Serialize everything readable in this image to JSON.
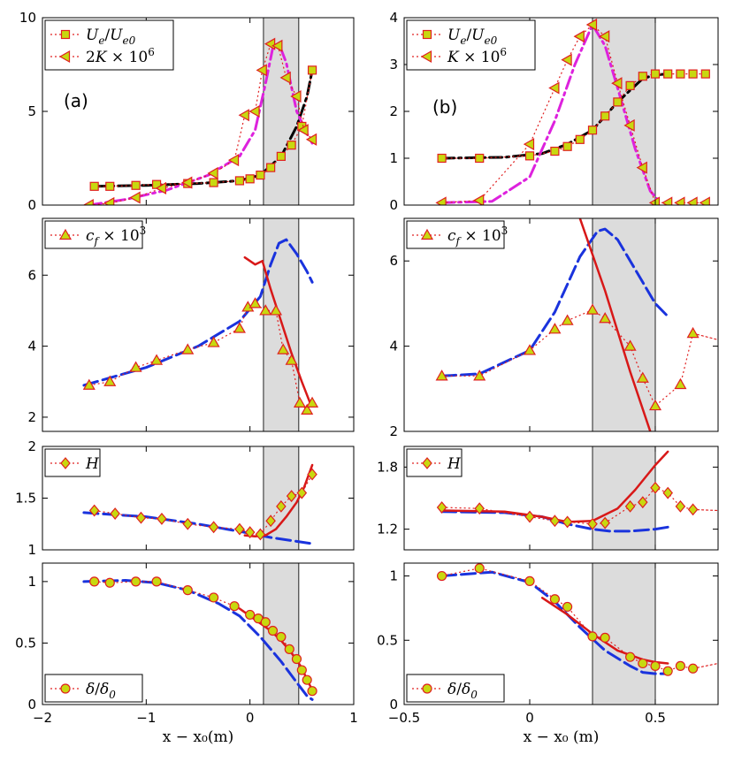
{
  "chart_data": [
    {
      "panel": "(a)",
      "type": "line",
      "ylim": [
        0,
        10
      ],
      "xlim": [
        -2,
        1
      ],
      "yticks": [
        "0",
        "5",
        "10"
      ],
      "ytick_values": [
        0,
        5,
        10
      ],
      "shaded_x": [
        0.13,
        0.47
      ],
      "legend": [
        "U_e/U_e0",
        "2K × 10^6"
      ],
      "legend_placement": "top-left",
      "series": [
        {
          "name": "U_e/U_e0",
          "kind": "markers",
          "marker": "square",
          "color": "#e02020",
          "x": [
            -1.5,
            -1.35,
            -1.1,
            -0.9,
            -0.6,
            -0.35,
            -0.1,
            0.0,
            0.1,
            0.2,
            0.3,
            0.4,
            0.5,
            0.6
          ],
          "y": [
            1.0,
            1.0,
            1.05,
            1.1,
            1.15,
            1.2,
            1.3,
            1.4,
            1.6,
            2.0,
            2.6,
            3.2,
            4.2,
            7.2
          ]
        },
        {
          "kind": "line",
          "style": "dashdot",
          "color": "#000000",
          "x": [
            -1.5,
            -1.0,
            -0.5,
            -0.1,
            0.1,
            0.3,
            0.45,
            0.55,
            0.6
          ],
          "y": [
            1.0,
            1.05,
            1.15,
            1.3,
            1.6,
            2.6,
            4.2,
            5.8,
            7.2
          ]
        },
        {
          "name": "2K × 10^6",
          "kind": "markers",
          "marker": "triangle-left",
          "color": "#e02020",
          "x": [
            -1.55,
            -1.35,
            -1.1,
            -0.85,
            -0.6,
            -0.35,
            -0.15,
            -0.05,
            0.05,
            0.12,
            0.2,
            0.27,
            0.35,
            0.45,
            0.52,
            0.6
          ],
          "y": [
            0.0,
            0.1,
            0.4,
            0.9,
            1.2,
            1.7,
            2.4,
            4.8,
            5.0,
            7.2,
            8.6,
            8.5,
            6.8,
            5.8,
            4.0,
            3.5
          ]
        },
        {
          "kind": "line",
          "style": "dashdot",
          "color": "#dd22dd",
          "x": [
            -1.55,
            -1.2,
            -0.8,
            -0.4,
            -0.1,
            0.05,
            0.15,
            0.22,
            0.28,
            0.35,
            0.45,
            0.55,
            0.6
          ],
          "y": [
            0.0,
            0.3,
            0.8,
            1.6,
            2.6,
            4.0,
            6.5,
            8.4,
            8.6,
            7.6,
            5.0,
            3.8,
            3.3
          ]
        }
      ]
    },
    {
      "panel": "(b)",
      "type": "line",
      "ylim": [
        0,
        4
      ],
      "xlim": [
        -0.5,
        0.75
      ],
      "yticks": [
        "0",
        "1",
        "2",
        "3",
        "4"
      ],
      "ytick_values": [
        0,
        1,
        2,
        3,
        4
      ],
      "shaded_x": [
        0.25,
        0.5
      ],
      "legend": [
        "U_e/U_e0",
        "K × 10^6"
      ],
      "legend_placement": "top-left",
      "series": [
        {
          "name": "U_e/U_e0",
          "kind": "markers",
          "marker": "square",
          "color": "#e02020",
          "x": [
            -0.35,
            -0.2,
            0.0,
            0.1,
            0.15,
            0.2,
            0.25,
            0.3,
            0.35,
            0.4,
            0.45,
            0.5,
            0.55,
            0.6,
            0.65,
            0.7
          ],
          "y": [
            1.0,
            1.0,
            1.05,
            1.15,
            1.25,
            1.4,
            1.6,
            1.9,
            2.2,
            2.55,
            2.75,
            2.8,
            2.8,
            2.8,
            2.8,
            2.8
          ]
        },
        {
          "kind": "line",
          "style": "dashdot",
          "color": "#000000",
          "x": [
            -0.35,
            -0.1,
            0.05,
            0.15,
            0.25,
            0.35,
            0.45,
            0.5,
            0.55
          ],
          "y": [
            1.0,
            1.02,
            1.1,
            1.3,
            1.6,
            2.2,
            2.7,
            2.78,
            2.8
          ]
        },
        {
          "name": "K × 10^6",
          "kind": "markers",
          "marker": "triangle-left",
          "color": "#e02020",
          "x": [
            -0.35,
            -0.2,
            0.0,
            0.1,
            0.15,
            0.2,
            0.25,
            0.3,
            0.35,
            0.4,
            0.45,
            0.5,
            0.55,
            0.6,
            0.65,
            0.7
          ],
          "y": [
            0.05,
            0.1,
            1.3,
            2.5,
            3.1,
            3.6,
            3.85,
            3.6,
            2.6,
            1.7,
            0.8,
            0.05,
            0.05,
            0.05,
            0.05,
            0.05
          ]
        },
        {
          "kind": "line",
          "style": "dashdot",
          "color": "#dd22dd",
          "x": [
            -0.35,
            -0.15,
            0.0,
            0.1,
            0.18,
            0.25,
            0.3,
            0.35,
            0.42,
            0.48,
            0.52
          ],
          "y": [
            0.05,
            0.08,
            0.6,
            1.8,
            3.0,
            3.85,
            3.4,
            2.5,
            1.2,
            0.3,
            0.05
          ]
        }
      ]
    },
    {
      "panel": "cf-left",
      "type": "line",
      "ylim": [
        1.6,
        7.6
      ],
      "xlim": [
        -2,
        1
      ],
      "yticks": [
        "2",
        "4",
        "6"
      ],
      "ytick_values": [
        2,
        4,
        6
      ],
      "shaded_x": [
        0.13,
        0.47
      ],
      "legend": [
        "c_f × 10^3"
      ],
      "legend_placement": "top-left",
      "series": [
        {
          "name": "c_f × 10^3",
          "kind": "markers",
          "marker": "triangle-up",
          "color": "#e02020",
          "x": [
            -1.55,
            -1.35,
            -1.1,
            -0.9,
            -0.6,
            -0.35,
            -0.1,
            -0.02,
            0.05,
            0.15,
            0.25,
            0.32,
            0.4,
            0.48,
            0.55,
            0.6
          ],
          "y": [
            2.9,
            3.0,
            3.4,
            3.6,
            3.9,
            4.1,
            4.5,
            5.1,
            5.2,
            5.0,
            5.0,
            3.9,
            3.6,
            2.4,
            2.2,
            2.4
          ]
        },
        {
          "kind": "line",
          "style": "dashed",
          "color": "#1a33dd",
          "x": [
            -1.6,
            -1.0,
            -0.5,
            -0.1,
            0.1,
            0.2,
            0.28,
            0.35,
            0.45,
            0.55,
            0.6
          ],
          "y": [
            2.9,
            3.4,
            4.0,
            4.7,
            5.4,
            6.3,
            6.9,
            7.0,
            6.6,
            6.1,
            5.8
          ]
        },
        {
          "kind": "line",
          "style": "solid",
          "color": "#d81818",
          "x": [
            -0.05,
            0.05,
            0.12,
            0.2,
            0.3,
            0.4,
            0.5,
            0.58
          ],
          "y": [
            6.5,
            6.3,
            6.4,
            5.6,
            4.7,
            3.8,
            3.0,
            2.4
          ]
        }
      ]
    },
    {
      "panel": "cf-right",
      "type": "line",
      "ylim": [
        2,
        7
      ],
      "xlim": [
        -0.5,
        0.75
      ],
      "yticks": [
        "2",
        "4",
        "6"
      ],
      "ytick_values": [
        2,
        4,
        6
      ],
      "shaded_x": [
        0.25,
        0.5
      ],
      "legend": [
        "c_f × 10^3"
      ],
      "legend_placement": "top-left",
      "series": [
        {
          "name": "c_f × 10^3",
          "kind": "markers",
          "marker": "triangle-up",
          "color": "#e02020",
          "x": [
            -0.35,
            -0.2,
            0.0,
            0.1,
            0.15,
            0.25,
            0.3,
            0.4,
            0.45,
            0.5,
            0.6,
            0.65
          ],
          "y": [
            3.3,
            3.3,
            3.9,
            4.4,
            4.6,
            4.85,
            4.65,
            4.0,
            3.25,
            2.6,
            3.1,
            4.3
          ]
        },
        {
          "kind": "line",
          "style": "dotted",
          "color": "#e02020",
          "x": [
            0.65,
            0.75
          ],
          "y": [
            4.3,
            4.15
          ]
        },
        {
          "kind": "line",
          "style": "dashed",
          "color": "#1a33dd",
          "x": [
            -0.35,
            -0.2,
            0.0,
            0.1,
            0.2,
            0.27,
            0.3,
            0.35,
            0.42,
            0.5,
            0.55
          ],
          "y": [
            3.3,
            3.35,
            3.9,
            4.8,
            6.1,
            6.7,
            6.75,
            6.5,
            5.8,
            5.0,
            4.7
          ]
        },
        {
          "kind": "line",
          "style": "solid",
          "color": "#d81818",
          "x": [
            0.2,
            0.3,
            0.4,
            0.48
          ],
          "y": [
            7.0,
            5.3,
            3.4,
            2.0
          ]
        }
      ]
    },
    {
      "panel": "H-left",
      "type": "line",
      "ylim": [
        1,
        2
      ],
      "xlim": [
        -2,
        1
      ],
      "yticks": [
        "1",
        "1.5",
        "2"
      ],
      "ytick_values": [
        1,
        1.5,
        2
      ],
      "shaded_x": [
        0.13,
        0.47
      ],
      "legend": [
        "H"
      ],
      "legend_placement": "top-left",
      "series": [
        {
          "name": "H",
          "kind": "markers",
          "marker": "diamond",
          "color": "#e02020",
          "x": [
            -1.5,
            -1.3,
            -1.05,
            -0.85,
            -0.6,
            -0.35,
            -0.1,
            0.0,
            0.1,
            0.2,
            0.3,
            0.4,
            0.5,
            0.6
          ],
          "y": [
            1.38,
            1.35,
            1.31,
            1.3,
            1.25,
            1.22,
            1.2,
            1.17,
            1.15,
            1.28,
            1.42,
            1.52,
            1.55,
            1.73
          ]
        },
        {
          "kind": "line",
          "style": "dashed",
          "color": "#1a33dd",
          "x": [
            -1.6,
            -1.0,
            -0.5,
            0.0,
            0.2,
            0.4,
            0.6
          ],
          "y": [
            1.36,
            1.32,
            1.25,
            1.16,
            1.12,
            1.09,
            1.06
          ]
        },
        {
          "kind": "line",
          "style": "solid",
          "color": "#d81818",
          "x": [
            -0.05,
            0.05,
            0.15,
            0.25,
            0.35,
            0.45,
            0.52,
            0.6
          ],
          "y": [
            1.14,
            1.13,
            1.14,
            1.2,
            1.32,
            1.46,
            1.6,
            1.82
          ]
        }
      ]
    },
    {
      "panel": "H-right",
      "type": "line",
      "ylim": [
        1.0,
        2.0
      ],
      "xlim": [
        -0.5,
        0.75
      ],
      "yticks": [
        "1.2",
        "1.8"
      ],
      "ytick_values": [
        1.2,
        1.8
      ],
      "shaded_x": [
        0.25,
        0.5
      ],
      "legend": [
        "H"
      ],
      "legend_placement": "top-left",
      "series": [
        {
          "name": "H",
          "kind": "markers",
          "marker": "diamond",
          "color": "#e02020",
          "x": [
            -0.35,
            -0.2,
            0.0,
            0.1,
            0.15,
            0.25,
            0.3,
            0.4,
            0.45,
            0.5,
            0.55,
            0.6,
            0.65
          ],
          "y": [
            1.41,
            1.4,
            1.32,
            1.28,
            1.27,
            1.25,
            1.26,
            1.42,
            1.46,
            1.6,
            1.55,
            1.42,
            1.39
          ]
        },
        {
          "kind": "line",
          "style": "dotted",
          "color": "#e02020",
          "x": [
            0.65,
            0.75
          ],
          "y": [
            1.39,
            1.38
          ]
        },
        {
          "kind": "line",
          "style": "dashed",
          "color": "#1a33dd",
          "x": [
            -0.35,
            -0.1,
            0.05,
            0.15,
            0.25,
            0.32,
            0.4,
            0.5,
            0.55
          ],
          "y": [
            1.37,
            1.36,
            1.32,
            1.25,
            1.2,
            1.18,
            1.18,
            1.2,
            1.22
          ]
        },
        {
          "kind": "line",
          "style": "solid",
          "color": "#d81818",
          "x": [
            -0.35,
            -0.1,
            0.05,
            0.15,
            0.25,
            0.35,
            0.42,
            0.5,
            0.55
          ],
          "y": [
            1.38,
            1.37,
            1.32,
            1.27,
            1.28,
            1.4,
            1.58,
            1.82,
            1.95
          ]
        }
      ]
    },
    {
      "panel": "delta-left",
      "type": "line",
      "ylim": [
        0,
        1.15
      ],
      "xlim": [
        -2,
        1
      ],
      "yticks": [
        "0",
        "0.5",
        "1"
      ],
      "ytick_values": [
        0,
        0.5,
        1
      ],
      "xticks": [
        "−2",
        "−1",
        "0",
        "1"
      ],
      "xtick_values": [
        -2,
        -1,
        0,
        1
      ],
      "xlabel": "x − x₀(m)",
      "shaded_x": [
        0.13,
        0.47
      ],
      "legend": [
        "δ/δ₀"
      ],
      "legend_placement": "bottom-left",
      "series": [
        {
          "name": "δ/δ₀",
          "kind": "markers",
          "marker": "circle",
          "color": "#e02020",
          "x": [
            -1.5,
            -1.35,
            -1.1,
            -0.9,
            -0.6,
            -0.35,
            -0.15,
            0.0,
            0.08,
            0.15,
            0.22,
            0.3,
            0.38,
            0.45,
            0.5,
            0.55,
            0.6
          ],
          "y": [
            1.0,
            0.99,
            1.0,
            1.0,
            0.93,
            0.87,
            0.8,
            0.73,
            0.7,
            0.67,
            0.6,
            0.55,
            0.45,
            0.37,
            0.28,
            0.2,
            0.11
          ]
        },
        {
          "kind": "line",
          "style": "dashed",
          "color": "#1a33dd",
          "x": [
            -1.6,
            -1.2,
            -0.9,
            -0.6,
            -0.3,
            -0.1,
            0.1,
            0.3,
            0.45,
            0.55,
            0.6
          ],
          "y": [
            1.0,
            1.01,
            0.99,
            0.93,
            0.82,
            0.72,
            0.55,
            0.35,
            0.18,
            0.07,
            0.04
          ]
        },
        {
          "kind": "line",
          "style": "solid",
          "color": "#d81818",
          "x": [
            -0.1,
            0.0,
            0.1,
            0.2,
            0.3,
            0.4,
            0.5,
            0.55,
            0.6
          ],
          "y": [
            0.78,
            0.72,
            0.66,
            0.6,
            0.52,
            0.42,
            0.3,
            0.2,
            0.12
          ]
        }
      ]
    },
    {
      "panel": "delta-right",
      "type": "line",
      "ylim": [
        0,
        1.1
      ],
      "xlim": [
        -0.5,
        0.75
      ],
      "yticks": [
        "0",
        "0.5",
        "1"
      ],
      "ytick_values": [
        0,
        0.5,
        1
      ],
      "xticks": [
        "−0.5",
        "0",
        "0.5"
      ],
      "xtick_values": [
        -0.5,
        0,
        0.5
      ],
      "xlabel": "x − x₀ (m)",
      "shaded_x": [
        0.25,
        0.5
      ],
      "legend": [
        "δ/δ₀"
      ],
      "legend_placement": "bottom-left",
      "series": [
        {
          "name": "δ/δ₀",
          "kind": "markers",
          "marker": "circle",
          "color": "#e02020",
          "x": [
            -0.35,
            -0.2,
            0.0,
            0.1,
            0.15,
            0.25,
            0.3,
            0.4,
            0.45,
            0.5,
            0.55,
            0.6,
            0.65
          ],
          "y": [
            1.0,
            1.06,
            0.96,
            0.82,
            0.76,
            0.53,
            0.52,
            0.37,
            0.32,
            0.3,
            0.26,
            0.3,
            0.28
          ]
        },
        {
          "kind": "line",
          "style": "dotted",
          "color": "#e02020",
          "x": [
            0.65,
            0.75
          ],
          "y": [
            0.28,
            0.32
          ]
        },
        {
          "kind": "line",
          "style": "dashed",
          "color": "#1a33dd",
          "x": [
            -0.35,
            -0.15,
            0.0,
            0.1,
            0.2,
            0.3,
            0.4,
            0.45,
            0.5,
            0.55
          ],
          "y": [
            1.0,
            1.03,
            0.95,
            0.8,
            0.6,
            0.42,
            0.3,
            0.25,
            0.24,
            0.24
          ]
        },
        {
          "kind": "line",
          "style": "solid",
          "color": "#d81818",
          "x": [
            0.05,
            0.15,
            0.25,
            0.35,
            0.45,
            0.5,
            0.55
          ],
          "y": [
            0.83,
            0.7,
            0.55,
            0.42,
            0.35,
            0.33,
            0.32
          ]
        }
      ]
    }
  ],
  "panel_labels": {
    "a": "(a)",
    "b": "(b)"
  }
}
